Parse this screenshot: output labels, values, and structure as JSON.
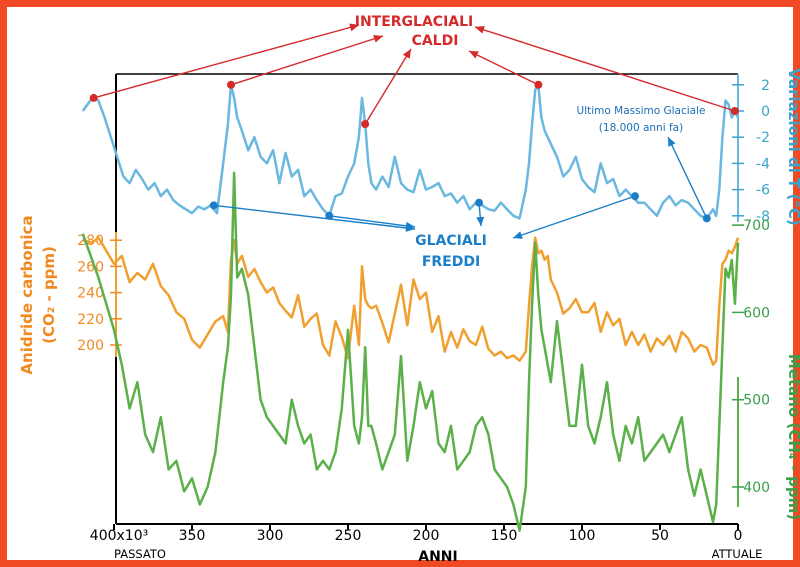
{
  "chart_data": {
    "type": "line",
    "xlabel": "ANNI",
    "xlim": [
      420,
      0
    ],
    "x_ticks": [
      400,
      350,
      300,
      250,
      200,
      150,
      100,
      50,
      0
    ],
    "x_tick_labels": [
      "400x10³",
      "350",
      "300",
      "250",
      "200",
      "150",
      "100",
      "50",
      "0"
    ],
    "left_end_label": "PASSATO",
    "right_end_label": "ATTUALE",
    "colors": {
      "temperature": "#6ab8e0",
      "co2": "#f0a030",
      "methane": "#5bb04a",
      "warm": "#d42a2a",
      "cold": "#1a7fc8",
      "frame": "#ef4a23"
    },
    "series": [
      {
        "key": "temperature",
        "axis_label": "Variazioni di T (°C)",
        "axis_side": "right",
        "ticks": [
          2,
          0,
          -2,
          -4,
          -6,
          -8
        ],
        "tick_labels": [
          "2",
          "0",
          "-2",
          "-4",
          "-6",
          "-8"
        ],
        "x": [
          420,
          414,
          410,
          406,
          402,
          398,
          394,
          390,
          386,
          382,
          378,
          374,
          370,
          366,
          362,
          358,
          354,
          350,
          346,
          342,
          338,
          334,
          330,
          327,
          325,
          323,
          321,
          318,
          314,
          310,
          306,
          302,
          298,
          294,
          290,
          286,
          282,
          278,
          274,
          270,
          266,
          262,
          258,
          254,
          250,
          246,
          243,
          241,
          239,
          237,
          235,
          232,
          228,
          224,
          220,
          216,
          212,
          208,
          204,
          200,
          196,
          192,
          188,
          184,
          180,
          176,
          172,
          168,
          164,
          160,
          156,
          152,
          148,
          144,
          140,
          136,
          134,
          132,
          130,
          128,
          126,
          124,
          122,
          120,
          116,
          112,
          108,
          104,
          100,
          96,
          92,
          88,
          84,
          80,
          76,
          72,
          68,
          64,
          60,
          56,
          52,
          48,
          44,
          40,
          36,
          32,
          28,
          24,
          20,
          16,
          14,
          12,
          10,
          8,
          6,
          4,
          2,
          0
        ],
        "values": [
          0,
          1,
          0.8,
          -0.5,
          -2,
          -3.5,
          -5,
          -5.5,
          -4.5,
          -5.2,
          -6,
          -5.5,
          -6.5,
          -6,
          -6.8,
          -7.2,
          -7.5,
          -7.8,
          -7.3,
          -7.5,
          -7.2,
          -7.8,
          -4,
          -1,
          2,
          1,
          -0.5,
          -1.5,
          -3,
          -2,
          -3.5,
          -4,
          -3,
          -5.5,
          -3.2,
          -5,
          -4.5,
          -6.5,
          -6,
          -6.8,
          -7.5,
          -8,
          -6.5,
          -6.3,
          -5,
          -4,
          -2,
          1,
          -1,
          -4,
          -5.5,
          -6,
          -5,
          -5.8,
          -3.5,
          -5.5,
          -6,
          -6.2,
          -4.5,
          -6,
          -5.8,
          -5.5,
          -6.5,
          -6.3,
          -7,
          -6.5,
          -7.5,
          -7,
          -7.2,
          -7.5,
          -7.6,
          -7,
          -7.5,
          -8,
          -8.2,
          -6,
          -4,
          -1,
          1.6,
          2,
          -0.5,
          -1.5,
          -2,
          -2.5,
          -3.5,
          -5,
          -4.5,
          -3.5,
          -5.2,
          -5.8,
          -6.2,
          -4,
          -5.5,
          -5.2,
          -6.5,
          -6,
          -6.5,
          -7,
          -7,
          -7.5,
          -8,
          -7,
          -6.5,
          -7.2,
          -6.8,
          -7,
          -7.5,
          -8,
          -8.2,
          -7.5,
          -8,
          -6,
          -2,
          0.8,
          0.5,
          -0.5,
          0,
          -0.5
        ]
      },
      {
        "key": "co2",
        "axis_label": "Anidride carbonica (CO₂ - ppm)",
        "axis_side": "left",
        "ticks": [
          280,
          260,
          240,
          220,
          200
        ],
        "tick_labels": [
          "280",
          "260",
          "240",
          "220",
          "200"
        ],
        "x": [
          420,
          414,
          410,
          405,
          400,
          395,
          390,
          385,
          380,
          375,
          370,
          365,
          360,
          355,
          350,
          345,
          340,
          335,
          330,
          327,
          325,
          323,
          321,
          318,
          314,
          310,
          306,
          302,
          298,
          294,
          290,
          286,
          282,
          278,
          274,
          270,
          266,
          262,
          258,
          254,
          250,
          246,
          243,
          241,
          239,
          237,
          235,
          232,
          228,
          224,
          220,
          216,
          212,
          208,
          204,
          200,
          196,
          192,
          188,
          184,
          180,
          176,
          172,
          168,
          164,
          160,
          156,
          152,
          148,
          144,
          140,
          136,
          134,
          132,
          130,
          128,
          126,
          124,
          122,
          120,
          116,
          112,
          108,
          104,
          100,
          96,
          92,
          88,
          84,
          80,
          76,
          72,
          68,
          64,
          60,
          56,
          52,
          48,
          44,
          40,
          36,
          32,
          28,
          24,
          20,
          16,
          14,
          12,
          10,
          8,
          6,
          4,
          2,
          0
        ],
        "values": [
          280,
          278,
          282,
          272,
          262,
          268,
          248,
          255,
          250,
          262,
          245,
          238,
          225,
          220,
          204,
          198,
          208,
          218,
          222,
          210,
          265,
          280,
          262,
          268,
          252,
          258,
          248,
          240,
          244,
          232,
          226,
          221,
          238,
          214,
          220,
          224,
          200,
          192,
          218,
          206,
          190,
          230,
          200,
          260,
          235,
          230,
          228,
          230,
          217,
          202,
          224,
          246,
          215,
          250,
          235,
          240,
          210,
          222,
          195,
          210,
          198,
          212,
          203,
          200,
          214,
          197,
          192,
          195,
          190,
          192,
          188,
          195,
          230,
          260,
          282,
          270,
          272,
          265,
          268,
          250,
          240,
          224,
          228,
          235,
          225,
          225,
          232,
          210,
          225,
          215,
          220,
          200,
          210,
          200,
          208,
          195,
          205,
          200,
          207,
          195,
          210,
          205,
          195,
          200,
          198,
          185,
          188,
          230,
          262,
          265,
          272,
          270,
          275,
          282
        ]
      },
      {
        "key": "methane",
        "axis_label": "Metano (CH₄ - ppm)",
        "axis_side": "right",
        "ticks": [
          700,
          600,
          500,
          400
        ],
        "tick_labels": [
          "700",
          "600",
          "500",
          "400"
        ],
        "x": [
          420,
          414,
          410,
          405,
          400,
          395,
          390,
          385,
          380,
          375,
          370,
          365,
          360,
          355,
          350,
          345,
          340,
          335,
          330,
          327,
          325,
          323,
          321,
          318,
          314,
          310,
          306,
          302,
          298,
          294,
          290,
          286,
          282,
          278,
          274,
          270,
          266,
          262,
          258,
          254,
          250,
          246,
          243,
          241,
          239,
          237,
          235,
          232,
          228,
          224,
          220,
          216,
          212,
          208,
          204,
          200,
          196,
          192,
          188,
          184,
          180,
          176,
          172,
          168,
          164,
          160,
          156,
          152,
          148,
          144,
          140,
          136,
          134,
          132,
          130,
          128,
          126,
          124,
          122,
          120,
          116,
          112,
          108,
          104,
          100,
          96,
          92,
          88,
          84,
          80,
          76,
          72,
          68,
          64,
          60,
          56,
          52,
          48,
          44,
          40,
          36,
          32,
          28,
          24,
          20,
          16,
          14,
          12,
          10,
          8,
          6,
          4,
          2,
          0
        ],
        "values": [
          690,
          660,
          640,
          610,
          580,
          540,
          490,
          520,
          460,
          440,
          480,
          420,
          430,
          395,
          410,
          380,
          400,
          440,
          520,
          560,
          620,
          760,
          640,
          650,
          620,
          560,
          500,
          480,
          470,
          460,
          450,
          500,
          470,
          450,
          460,
          420,
          430,
          420,
          440,
          490,
          580,
          470,
          450,
          480,
          560,
          470,
          470,
          450,
          420,
          440,
          460,
          550,
          430,
          470,
          520,
          490,
          510,
          450,
          440,
          470,
          420,
          430,
          440,
          470,
          480,
          460,
          420,
          410,
          400,
          380,
          350,
          400,
          520,
          610,
          680,
          620,
          580,
          560,
          540,
          520,
          590,
          530,
          470,
          470,
          540,
          470,
          450,
          480,
          520,
          460,
          430,
          470,
          450,
          480,
          430,
          440,
          450,
          460,
          440,
          460,
          480,
          420,
          390,
          420,
          390,
          360,
          380,
          470,
          560,
          650,
          640,
          660,
          610,
          680
        ]
      }
    ],
    "annotations": {
      "warm_title_1": "INTERGLACIALI",
      "warm_title_2": "CALDI",
      "cold_title_1": "GLACIALI",
      "cold_title_2": "FREDDI",
      "lgm_1": "Ultimo Massimo Glaciale",
      "lgm_2": "(18.000 anni fa)",
      "warm_points_x": [
        413,
        325,
        239,
        128,
        2
      ],
      "cold_points_x": [
        336,
        262,
        166,
        66,
        20
      ]
    }
  }
}
